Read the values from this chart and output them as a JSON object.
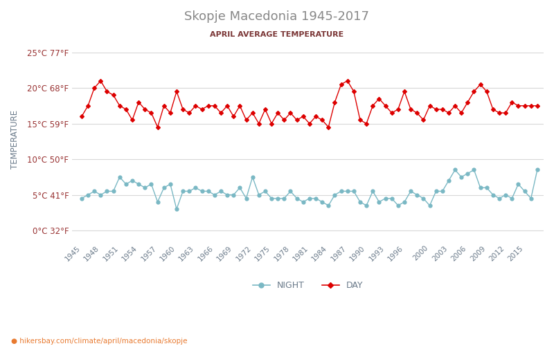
{
  "title": "Skopje Macedonia 1945-2017",
  "subtitle": "APRIL AVERAGE TEMPERATURE",
  "ylabel": "TEMPERATURE",
  "footer": "hikersbay.com/climate/april/macedonia/skopje",
  "title_color": "#888888",
  "subtitle_color": "#7a3535",
  "ylabel_color": "#6a7a8a",
  "tick_color": "#993333",
  "background_color": "#ffffff",
  "grid_color": "#d8d8d8",
  "years": [
    1945,
    1946,
    1947,
    1948,
    1949,
    1950,
    1951,
    1952,
    1953,
    1954,
    1955,
    1956,
    1957,
    1958,
    1959,
    1960,
    1961,
    1962,
    1963,
    1964,
    1965,
    1966,
    1967,
    1968,
    1969,
    1970,
    1971,
    1972,
    1973,
    1974,
    1975,
    1976,
    1977,
    1978,
    1979,
    1980,
    1981,
    1982,
    1983,
    1984,
    1985,
    1986,
    1987,
    1988,
    1989,
    1990,
    1991,
    1992,
    1993,
    1994,
    1995,
    1996,
    1997,
    1998,
    1999,
    2000,
    2001,
    2002,
    2003,
    2004,
    2005,
    2006,
    2007,
    2008,
    2009,
    2010,
    2011,
    2012,
    2013,
    2014,
    2015,
    2016,
    2017
  ],
  "day_values": [
    16.0,
    17.5,
    20.0,
    21.0,
    19.5,
    19.0,
    17.5,
    17.0,
    15.5,
    18.0,
    17.0,
    16.5,
    14.5,
    17.5,
    16.5,
    19.5,
    17.0,
    16.5,
    17.5,
    17.0,
    17.5,
    17.5,
    16.5,
    17.5,
    16.0,
    17.5,
    15.5,
    16.5,
    15.0,
    17.0,
    15.0,
    16.5,
    15.5,
    16.5,
    15.5,
    16.0,
    15.0,
    16.0,
    15.5,
    14.5,
    18.0,
    20.5,
    21.0,
    19.5,
    15.5,
    15.0,
    17.5,
    18.5,
    17.5,
    16.5,
    17.0,
    19.5,
    17.0,
    16.5,
    15.5,
    17.5,
    17.0,
    17.0,
    16.5,
    17.5,
    16.5,
    18.0,
    19.5,
    20.5,
    19.5,
    17.0,
    16.5,
    16.5,
    18.0,
    17.5,
    17.5,
    17.5,
    17.5
  ],
  "night_values": [
    4.5,
    5.0,
    5.5,
    5.0,
    5.5,
    5.5,
    7.5,
    6.5,
    7.0,
    6.5,
    6.0,
    6.5,
    4.0,
    6.0,
    6.5,
    3.0,
    5.5,
    5.5,
    6.0,
    5.5,
    5.5,
    5.0,
    5.5,
    5.0,
    5.0,
    6.0,
    4.5,
    7.5,
    5.0,
    5.5,
    4.5,
    4.5,
    4.5,
    5.5,
    4.5,
    4.0,
    4.5,
    4.5,
    4.0,
    3.5,
    5.0,
    5.5,
    5.5,
    5.5,
    4.0,
    3.5,
    5.5,
    4.0,
    4.5,
    4.5,
    3.5,
    4.0,
    5.5,
    5.0,
    4.5,
    3.5,
    5.5,
    5.5,
    7.0,
    8.5,
    7.5,
    8.0,
    8.5,
    6.0,
    6.0,
    5.0,
    4.5,
    5.0,
    4.5,
    6.5,
    5.5,
    4.5,
    8.5
  ],
  "day_color": "#dd0000",
  "night_color": "#7ab8c4",
  "ylim_min": -1.5,
  "ylim_max": 27,
  "yticks": [
    0,
    5,
    10,
    15,
    20,
    25
  ],
  "ytick_labels": [
    "0°C 32°F",
    "5°C 41°F",
    "10°C 50°F",
    "15°C 59°F",
    "20°C 68°F",
    "25°C 77°F"
  ],
  "xtick_years": [
    1945,
    1948,
    1951,
    1954,
    1957,
    1960,
    1963,
    1966,
    1969,
    1972,
    1975,
    1978,
    1981,
    1984,
    1987,
    1990,
    1993,
    1996,
    2000,
    2003,
    2006,
    2009,
    2012,
    2015
  ],
  "legend_night": "NIGHT",
  "legend_day": "DAY"
}
